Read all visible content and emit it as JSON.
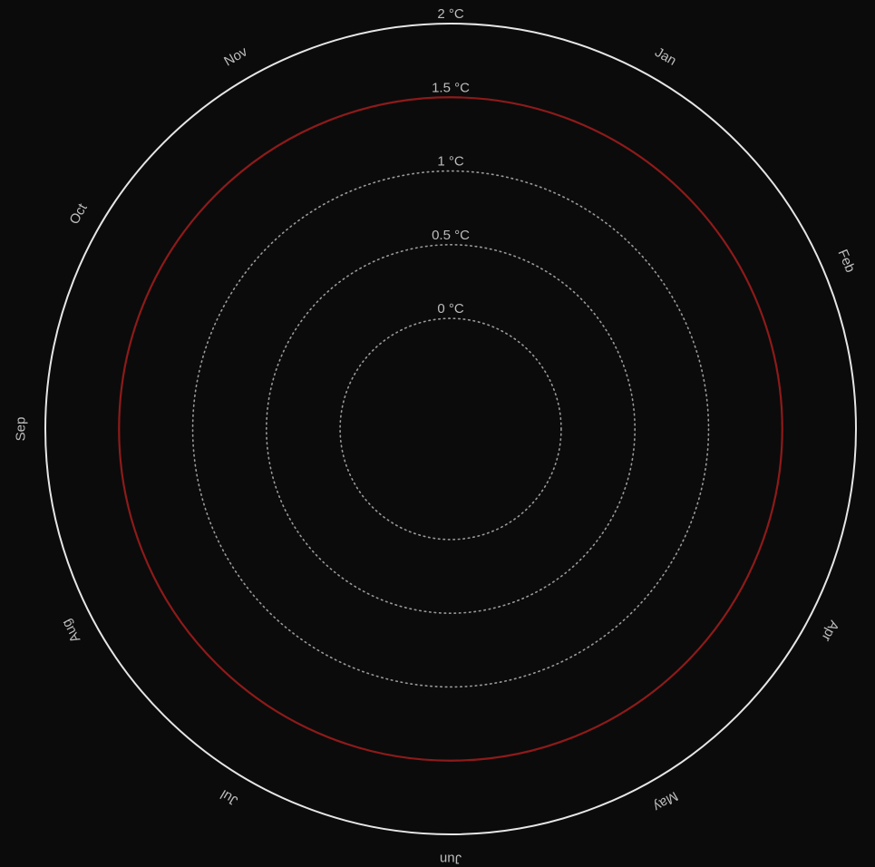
{
  "chart_data": {
    "type": "radial",
    "rings": [
      {
        "value": 0,
        "label": "0 °C",
        "style": "dotted"
      },
      {
        "value": 0.5,
        "label": "0.5 °C",
        "style": "dotted"
      },
      {
        "value": 1,
        "label": "1 °C",
        "style": "dotted"
      },
      {
        "value": 1.5,
        "label": "1.5 °C",
        "style": "solid"
      },
      {
        "value": 2,
        "label": "2 °C",
        "style": "solid"
      }
    ],
    "radial_range": [
      -0.75,
      2
    ],
    "months": [
      {
        "label": "Jan",
        "angle_deg": 30
      },
      {
        "label": "Feb",
        "angle_deg": 67
      },
      {
        "label": "Apr",
        "angle_deg": 118
      },
      {
        "label": "May",
        "angle_deg": 150
      },
      {
        "label": "Jun",
        "angle_deg": 180
      },
      {
        "label": "Jul",
        "angle_deg": 211
      },
      {
        "label": "Aug",
        "angle_deg": 242
      },
      {
        "label": "Sep",
        "angle_deg": 270
      },
      {
        "label": "Oct",
        "angle_deg": 300
      },
      {
        "label": "Nov",
        "angle_deg": 330
      }
    ],
    "colors": {
      "background": "#0b0b0b",
      "outer_ring": "#e6e6e6",
      "threshold_ring": "#8e1a1a",
      "dotted_ring": "#9a9a9a",
      "text": "#bdbdbd"
    }
  }
}
